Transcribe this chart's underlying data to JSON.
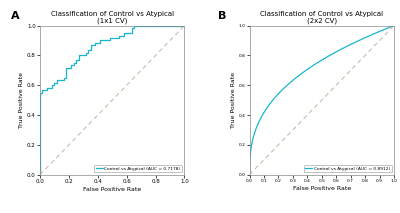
{
  "title_A": "Classification of Control vs Atypical\n(1x1 CV)",
  "title_B": "Classification of Control vs Atypical\n(2x2 CV)",
  "xlabel": "False Positive Rate",
  "ylabel": "True Positive Rate",
  "legend_A": "Control vs Atypical (AUC = 0.7178)",
  "legend_B": "Control vs Atypical (AUC = 0.8912)",
  "roc_color": "#17b6cc",
  "diag_color": "#ccbbaa",
  "label_A": "A",
  "label_B": "B",
  "xticks_A": [
    0,
    0.2,
    0.4,
    0.6,
    0.8,
    1.0
  ],
  "xticks_B": [
    0,
    0.1,
    0.2,
    0.3,
    0.4,
    0.5,
    0.6,
    0.7,
    0.8,
    0.9,
    1.0
  ],
  "yticks": [
    0,
    0.2,
    0.4,
    0.6,
    0.8,
    1.0
  ],
  "background_color": "#ffffff",
  "axes_background": "#ffffff"
}
